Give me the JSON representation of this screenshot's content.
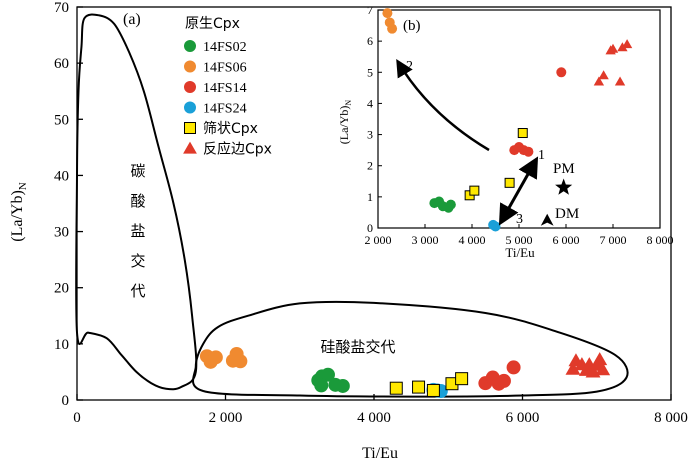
{
  "figure": {
    "panel_a_label": "(a)",
    "panel_b_label": "(b)",
    "legend": {
      "title": "原生Cpx",
      "entries": [
        {
          "key": "14FS02",
          "label": "14FS02",
          "marker": "circle",
          "color": "#1a9a3a"
        },
        {
          "key": "14FS06",
          "label": "14FS06",
          "marker": "circle",
          "color": "#f08a30"
        },
        {
          "key": "14FS14",
          "label": "14FS14",
          "marker": "circle",
          "color": "#e03a2a"
        },
        {
          "key": "14FS24",
          "label": "14FS24",
          "marker": "circle",
          "color": "#1aa0d8"
        },
        {
          "key": "sieve",
          "label": "筛状Cpx",
          "marker": "square",
          "color": "#ffe800"
        },
        {
          "key": "rim",
          "label": "反应边Cpx",
          "marker": "triangle",
          "color": "#e03a2a"
        }
      ]
    },
    "field_labels": {
      "carbonate": [
        "碳",
        "酸",
        "盐",
        "交",
        "代"
      ],
      "silicate": "硅酸盐交代"
    },
    "inset_labels": {
      "PM": "PM",
      "DM": "DM",
      "arrow1": "1",
      "arrow2": "2",
      "arrow3": "3"
    }
  },
  "chart_data": [
    {
      "id": "a",
      "type": "scatter",
      "title": "(a)",
      "xlabel": "Ti/Eu",
      "ylabel": "(La/Yb)N",
      "xlim": [
        0,
        8000
      ],
      "ylim": [
        0,
        70
      ],
      "xticks": [
        0,
        2000,
        4000,
        6000,
        8000
      ],
      "xtick_labels": [
        "0",
        "2 000",
        "4 000",
        "6 000",
        "8 000"
      ],
      "yticks": [
        0,
        10,
        20,
        30,
        40,
        50,
        60,
        70
      ],
      "ytick_labels": [
        "0",
        "10",
        "20",
        "30",
        "40",
        "50",
        "60",
        "70"
      ],
      "grid": false,
      "legend_position": "top-left",
      "series": [
        {
          "key": "14FS02",
          "name": "14FS02",
          "marker": "circle",
          "color": "#1a9a3a",
          "points": [
            [
              3250,
              3.5
            ],
            [
              3300,
              4.2
            ],
            [
              3380,
              4.5
            ],
            [
              3480,
              2.7
            ],
            [
              3580,
              2.5
            ],
            [
              3290,
              2.6
            ]
          ]
        },
        {
          "key": "14FS06",
          "name": "14FS06",
          "marker": "circle",
          "color": "#f08a30",
          "points": [
            [
              1750,
              7.8
            ],
            [
              1800,
              6.8
            ],
            [
              1870,
              7.6
            ],
            [
              2100,
              7.0
            ],
            [
              2150,
              8.2
            ],
            [
              2200,
              6.9
            ]
          ]
        },
        {
          "key": "14FS14",
          "name": "14FS14",
          "marker": "circle",
          "color": "#e03a2a",
          "points": [
            [
              5500,
              3.0
            ],
            [
              5600,
              4.0
            ],
            [
              5680,
              2.9
            ],
            [
              5750,
              3.4
            ],
            [
              5880,
              5.8
            ]
          ]
        },
        {
          "key": "14FS24",
          "name": "14FS24",
          "marker": "circle",
          "color": "#1aa0d8",
          "points": [
            [
              4800,
              1.8
            ],
            [
              4850,
              1.7
            ],
            [
              4900,
              1.6
            ]
          ]
        },
        {
          "key": "sieve",
          "name": "筛状Cpx",
          "marker": "square",
          "color": "#ffe800",
          "points": [
            [
              4300,
              2.1
            ],
            [
              4600,
              2.3
            ],
            [
              4800,
              1.7
            ],
            [
              5050,
              2.9
            ],
            [
              5180,
              3.8
            ]
          ]
        },
        {
          "key": "rim",
          "name": "反应边Cpx",
          "marker": "triangle",
          "color": "#e03a2a",
          "points": [
            [
              6680,
              5.5
            ],
            [
              6720,
              7.0
            ],
            [
              6800,
              6.3
            ],
            [
              6860,
              5.3
            ],
            [
              6900,
              6.3
            ],
            [
              6950,
              5.0
            ],
            [
              7000,
              6.2
            ],
            [
              7040,
              7.2
            ],
            [
              7080,
              5.4
            ]
          ]
        }
      ],
      "fields": [
        {
          "name": "碳酸盐交代",
          "points": [
            [
              100,
              68
            ],
            [
              300,
              68.5
            ],
            [
              500,
              67
            ],
            [
              700,
              62
            ],
            [
              900,
              55
            ],
            [
              1100,
              45
            ],
            [
              1300,
              35
            ],
            [
              1450,
              25
            ],
            [
              1550,
              15
            ],
            [
              1600,
              5
            ],
            [
              1400,
              2.3
            ],
            [
              1200,
              2
            ],
            [
              1000,
              3
            ],
            [
              800,
              5
            ],
            [
              600,
              8
            ],
            [
              400,
              11
            ],
            [
              150,
              12
            ],
            [
              0,
              12
            ],
            [
              0,
              40
            ],
            [
              20,
              55
            ],
            [
              60,
              63
            ]
          ]
        },
        {
          "name": "硅酸盐交代",
          "points": [
            [
              1700,
              1.6
            ],
            [
              3000,
              0.8
            ],
            [
              4500,
              0.6
            ],
            [
              6000,
              0.8
            ],
            [
              7000,
              1.5
            ],
            [
              7400,
              4
            ],
            [
              7250,
              8
            ],
            [
              6500,
              12
            ],
            [
              5500,
              15.5
            ],
            [
              4000,
              17.3
            ],
            [
              3000,
              17.2
            ],
            [
              2300,
              15
            ],
            [
              1900,
              13
            ],
            [
              1700,
              10
            ],
            [
              1600,
              6
            ]
          ]
        }
      ]
    },
    {
      "id": "b",
      "type": "scatter",
      "title": "(b)",
      "xlabel": "Ti/Eu",
      "ylabel": "(La/Yb)N",
      "xlim": [
        2000,
        8000
      ],
      "ylim": [
        0,
        7
      ],
      "xticks": [
        2000,
        3000,
        4000,
        5000,
        6000,
        7000,
        8000
      ],
      "xtick_labels": [
        "2 000",
        "3 000",
        "4 000",
        "5 000",
        "6 000",
        "7 000",
        "8 000"
      ],
      "yticks": [
        0,
        1,
        2,
        3,
        4,
        5,
        6,
        7
      ],
      "ytick_labels": [
        "0",
        "1",
        "2",
        "3",
        "4",
        "5",
        "6",
        "7"
      ],
      "grid": false,
      "series": [
        {
          "key": "14FS02",
          "name": "14FS02",
          "marker": "circle",
          "color": "#1a9a3a",
          "points": [
            [
              3200,
              0.8
            ],
            [
              3300,
              0.85
            ],
            [
              3380,
              0.7
            ],
            [
              3550,
              0.75
            ],
            [
              3500,
              0.65
            ]
          ]
        },
        {
          "key": "14FS06",
          "name": "14FS06",
          "marker": "circle",
          "color": "#f08a30",
          "points": [
            [
              2200,
              6.9
            ],
            [
              2250,
              6.6
            ],
            [
              2300,
              6.4
            ]
          ]
        },
        {
          "key": "14FS14",
          "name": "14FS14",
          "marker": "circle",
          "color": "#e03a2a",
          "points": [
            [
              4900,
              2.5
            ],
            [
              5000,
              2.6
            ],
            [
              5100,
              2.5
            ],
            [
              5200,
              2.45
            ],
            [
              5900,
              5.0
            ]
          ]
        },
        {
          "key": "14FS24",
          "name": "14FS24",
          "marker": "circle",
          "color": "#1aa0d8",
          "points": [
            [
              4450,
              0.1
            ],
            [
              4500,
              0.05
            ]
          ]
        },
        {
          "key": "sieve",
          "name": "筛状Cpx",
          "marker": "square",
          "color": "#ffe800",
          "points": [
            [
              3950,
              1.05
            ],
            [
              4050,
              1.2
            ],
            [
              4800,
              1.45
            ],
            [
              5080,
              3.05
            ]
          ]
        },
        {
          "key": "rim",
          "name": "反应边Cpx",
          "marker": "triangle",
          "color": "#e03a2a",
          "points": [
            [
              6700,
              4.7
            ],
            [
              6800,
              4.9
            ],
            [
              6950,
              5.7
            ],
            [
              7000,
              5.75
            ],
            [
              7150,
              4.7
            ],
            [
              7200,
              5.8
            ],
            [
              7300,
              5.9
            ]
          ]
        }
      ],
      "reference_points": [
        {
          "label": "PM",
          "x": 5950,
          "y": 1.3
        },
        {
          "label": "DM",
          "x": 5600,
          "y": 0.2
        }
      ]
    }
  ]
}
